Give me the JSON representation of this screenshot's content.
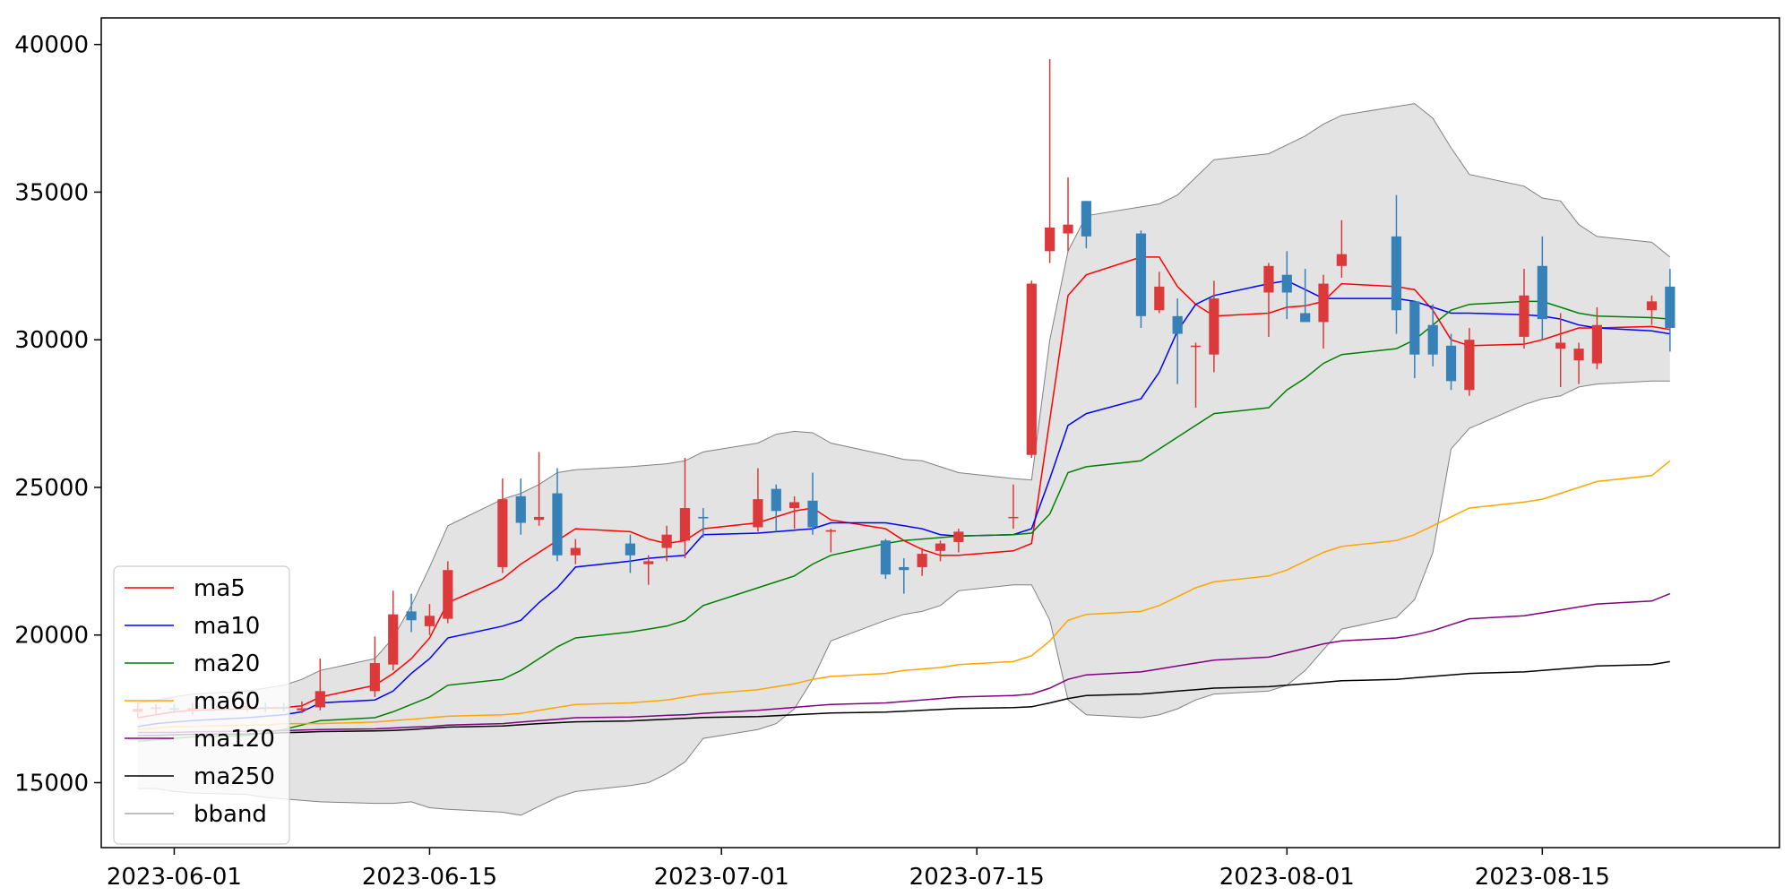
{
  "chart_data": {
    "type": "candlestick",
    "title": "",
    "xlabel": "",
    "ylabel": "",
    "ylim": [
      12800,
      40900
    ],
    "xlim": [
      "2023-05-28",
      "2023-08-28"
    ],
    "yticks": [
      15000,
      20000,
      25000,
      30000,
      35000,
      40000
    ],
    "xticks": [
      "2023-06-01",
      "2023-06-15",
      "2023-07-01",
      "2023-07-15",
      "2023-08-01",
      "2023-08-15"
    ],
    "grid": false,
    "legend_position": "lower-left",
    "colors": {
      "up": "#dc3a3a",
      "down": "#3581b8"
    },
    "dates": [
      "2023-05-30",
      "2023-05-31",
      "2023-06-01",
      "2023-06-02",
      "2023-06-05",
      "2023-06-06",
      "2023-06-07",
      "2023-06-08",
      "2023-06-09",
      "2023-06-12",
      "2023-06-13",
      "2023-06-14",
      "2023-06-15",
      "2023-06-16",
      "2023-06-19",
      "2023-06-20",
      "2023-06-21",
      "2023-06-22",
      "2023-06-23",
      "2023-06-26",
      "2023-06-27",
      "2023-06-28",
      "2023-06-29",
      "2023-06-30",
      "2023-07-03",
      "2023-07-04",
      "2023-07-05",
      "2023-07-06",
      "2023-07-07",
      "2023-07-10",
      "2023-07-11",
      "2023-07-12",
      "2023-07-13",
      "2023-07-14",
      "2023-07-17",
      "2023-07-18",
      "2023-07-19",
      "2023-07-20",
      "2023-07-21",
      "2023-07-24",
      "2023-07-25",
      "2023-07-26",
      "2023-07-27",
      "2023-07-28",
      "2023-07-31",
      "2023-08-01",
      "2023-08-02",
      "2023-08-03",
      "2023-08-04",
      "2023-08-07",
      "2023-08-08",
      "2023-08-09",
      "2023-08-10",
      "2023-08-11",
      "2023-08-14",
      "2023-08-15",
      "2023-08-16",
      "2023-08-17",
      "2023-08-18",
      "2023-08-21",
      "2023-08-22"
    ],
    "ohlc": [
      [
        17400,
        17700,
        17200,
        17500
      ],
      [
        17500,
        17650,
        17300,
        17550
      ],
      [
        17520,
        17650,
        17350,
        17500
      ],
      [
        17480,
        17700,
        17300,
        17520
      ],
      [
        17550,
        17700,
        17400,
        17600
      ],
      [
        17560,
        17700,
        17400,
        17550
      ],
      [
        17550,
        17700,
        17400,
        17500
      ],
      [
        17450,
        17750,
        17350,
        17520
      ],
      [
        17550,
        19200,
        17450,
        18100
      ],
      [
        18100,
        19950,
        17900,
        19050
      ],
      [
        19000,
        21500,
        18800,
        20700
      ],
      [
        20800,
        21400,
        20100,
        20500
      ],
      [
        20300,
        21050,
        20000,
        20650
      ],
      [
        20550,
        22500,
        20400,
        22200
      ],
      [
        22300,
        25300,
        22100,
        24600
      ],
      [
        24700,
        25300,
        23400,
        23800
      ],
      [
        23900,
        26200,
        23700,
        24000
      ],
      [
        24800,
        25650,
        22500,
        22700
      ],
      [
        22700,
        23250,
        22400,
        22950
      ],
      [
        23100,
        23400,
        22100,
        22700
      ],
      [
        22400,
        22700,
        21700,
        22500
      ],
      [
        22950,
        23700,
        22500,
        23400
      ],
      [
        23200,
        26000,
        22600,
        24300
      ],
      [
        24000,
        24300,
        23300,
        23950
      ],
      [
        23650,
        25650,
        23500,
        24600
      ],
      [
        24950,
        25100,
        23500,
        24200
      ],
      [
        24300,
        24700,
        23600,
        24500
      ],
      [
        24550,
        25500,
        23400,
        23650
      ],
      [
        23500,
        23600,
        22800,
        23550
      ],
      [
        23200,
        23250,
        21900,
        22050
      ],
      [
        22300,
        22600,
        21400,
        22200
      ],
      [
        22300,
        22950,
        22000,
        22750
      ],
      [
        22850,
        23200,
        22500,
        23100
      ],
      [
        23150,
        23600,
        22800,
        23500
      ],
      [
        24000,
        25100,
        23600,
        24000
      ],
      [
        26100,
        32000,
        26000,
        31900
      ],
      [
        33000,
        39500,
        32600,
        33800
      ],
      [
        33600,
        35500,
        33000,
        33900
      ],
      [
        34700,
        34700,
        33100,
        33500
      ],
      [
        33600,
        33700,
        30400,
        30800
      ],
      [
        31000,
        32300,
        30900,
        31800
      ],
      [
        30800,
        31400,
        28500,
        30200
      ],
      [
        29800,
        29900,
        27700,
        29800
      ],
      [
        29500,
        32000,
        28900,
        31400
      ],
      [
        31600,
        32600,
        30100,
        32500
      ],
      [
        32200,
        33000,
        30700,
        31600
      ],
      [
        30900,
        32400,
        30600,
        30600
      ],
      [
        30600,
        32200,
        29700,
        31900
      ],
      [
        32500,
        34050,
        32100,
        32900
      ],
      [
        33500,
        34900,
        30200,
        31000
      ],
      [
        31300,
        31300,
        28700,
        29500
      ],
      [
        30500,
        31200,
        29100,
        29500
      ],
      [
        29800,
        30200,
        28300,
        28600
      ],
      [
        28300,
        30400,
        28100,
        30000
      ],
      [
        30100,
        32400,
        29700,
        31500
      ],
      [
        32500,
        33500,
        30000,
        30700
      ],
      [
        29700,
        30900,
        28400,
        29900
      ],
      [
        29300,
        29900,
        28500,
        29700
      ],
      [
        29200,
        31100,
        29000,
        30500
      ],
      [
        31000,
        31500,
        30500,
        31300
      ],
      [
        31800,
        32400,
        29600,
        30400
      ]
    ],
    "series": [
      {
        "name": "ma5",
        "color": "#ff0000",
        "width": 1.5,
        "values": [
          17200,
          17300,
          17400,
          17450,
          17500,
          17520,
          17540,
          17600,
          17900,
          18300,
          18700,
          19200,
          19900,
          21100,
          21900,
          22400,
          22800,
          23200,
          23600,
          23500,
          23250,
          23100,
          23200,
          23600,
          23800,
          24000,
          24200,
          24300,
          23900,
          23600,
          23200,
          22900,
          22700,
          22700,
          22850,
          23100,
          27300,
          31500,
          32200,
          32800,
          32800,
          31800,
          31200,
          30800,
          30900,
          31100,
          31150,
          31300,
          31900,
          31800,
          31700,
          31000,
          30000,
          29800,
          29850,
          30000,
          30200,
          30400,
          30400,
          30450,
          30350
        ]
      },
      {
        "name": "ma10",
        "color": "#0000ff",
        "width": 1.5,
        "values": [
          16900,
          17000,
          17050,
          17100,
          17200,
          17250,
          17300,
          17400,
          17700,
          17800,
          18100,
          18700,
          19200,
          19900,
          20300,
          20500,
          21100,
          21600,
          22300,
          22500,
          22600,
          22650,
          22700,
          23400,
          23450,
          23500,
          23550,
          23600,
          23800,
          23800,
          23700,
          23600,
          23400,
          23350,
          23400,
          23600,
          25300,
          27100,
          27500,
          28000,
          28900,
          30300,
          31200,
          31500,
          31900,
          32000,
          31700,
          31400,
          31400,
          31400,
          31300,
          31100,
          30900,
          30900,
          30850,
          30800,
          30700,
          30500,
          30400,
          30300,
          30200
        ]
      },
      {
        "name": "ma20",
        "color": "#008000",
        "width": 1.5,
        "values": [
          16400,
          16450,
          16500,
          16550,
          16600,
          16700,
          16800,
          16950,
          17100,
          17200,
          17400,
          17650,
          17900,
          18300,
          18500,
          18800,
          19200,
          19600,
          19900,
          20100,
          20200,
          20300,
          20500,
          21000,
          21600,
          21800,
          22000,
          22400,
          22700,
          23100,
          23200,
          23250,
          23300,
          23350,
          23400,
          23450,
          24100,
          25500,
          25700,
          25900,
          26300,
          26700,
          27100,
          27500,
          27700,
          28300,
          28700,
          29200,
          29500,
          29700,
          30000,
          30500,
          31000,
          31200,
          31300,
          31300,
          31100,
          30900,
          30800,
          30750,
          30700
        ]
      },
      {
        "name": "ma60",
        "color": "#ffa500",
        "width": 1.5,
        "values": [
          16800,
          16850,
          16900,
          16900,
          16950,
          16950,
          17000,
          17000,
          17000,
          17050,
          17100,
          17150,
          17200,
          17250,
          17300,
          17350,
          17450,
          17550,
          17650,
          17700,
          17750,
          17800,
          17900,
          18000,
          18150,
          18250,
          18350,
          18500,
          18600,
          18700,
          18800,
          18850,
          18900,
          19000,
          19100,
          19300,
          19800,
          20500,
          20700,
          20800,
          21000,
          21300,
          21600,
          21800,
          22000,
          22200,
          22500,
          22800,
          23000,
          23200,
          23400,
          23700,
          24000,
          24300,
          24500,
          24600,
          24800,
          25000,
          25200,
          25400,
          25900
        ]
      },
      {
        "name": "ma120",
        "color": "#800080",
        "width": 1.5,
        "values": [
          16700,
          16700,
          16700,
          16720,
          16740,
          16750,
          16760,
          16780,
          16800,
          16820,
          16850,
          16880,
          16900,
          16950,
          17000,
          17050,
          17100,
          17150,
          17200,
          17220,
          17250,
          17280,
          17300,
          17350,
          17450,
          17500,
          17550,
          17600,
          17650,
          17700,
          17750,
          17800,
          17850,
          17900,
          17950,
          18000,
          18200,
          18500,
          18650,
          18750,
          18850,
          18950,
          19050,
          19150,
          19250,
          19400,
          19550,
          19700,
          19800,
          19900,
          20000,
          20150,
          20350,
          20550,
          20650,
          20750,
          20850,
          20950,
          21050,
          21150,
          21400
        ]
      },
      {
        "name": "ma250",
        "color": "#000000",
        "width": 1.5,
        "values": [
          16600,
          16600,
          16620,
          16640,
          16650,
          16670,
          16690,
          16710,
          16730,
          16750,
          16770,
          16800,
          16840,
          16880,
          16920,
          16960,
          17000,
          17030,
          17060,
          17090,
          17120,
          17150,
          17180,
          17210,
          17240,
          17270,
          17300,
          17330,
          17360,
          17390,
          17420,
          17450,
          17480,
          17510,
          17540,
          17570,
          17700,
          17850,
          17950,
          18000,
          18050,
          18100,
          18150,
          18200,
          18250,
          18300,
          18350,
          18400,
          18450,
          18500,
          18550,
          18600,
          18650,
          18700,
          18750,
          18800,
          18850,
          18900,
          18950,
          19000,
          19100
        ]
      }
    ],
    "bband": {
      "name": "bband",
      "color": "#808080",
      "fill": "#e3e3e3",
      "upper": [
        17700,
        17800,
        17900,
        18000,
        18100,
        18200,
        18300,
        18500,
        18800,
        19200,
        19900,
        21000,
        22300,
        23700,
        24600,
        24800,
        25100,
        25500,
        25600,
        25700,
        25750,
        25800,
        25900,
        26200,
        26500,
        26800,
        26900,
        26850,
        26500,
        26100,
        25950,
        25900,
        25700,
        25500,
        25300,
        25250,
        30000,
        33000,
        34200,
        34500,
        34600,
        34900,
        35500,
        36100,
        36300,
        36600,
        36900,
        37300,
        37600,
        37900,
        38000,
        37500,
        36500,
        35600,
        35200,
        34800,
        34700,
        33900,
        33500,
        33300,
        32800
      ],
      "lower": [
        14800,
        14800,
        14700,
        14650,
        14600,
        14500,
        14450,
        14400,
        14350,
        14300,
        14300,
        14350,
        14150,
        14100,
        14000,
        13900,
        14200,
        14500,
        14700,
        14900,
        15000,
        15300,
        15700,
        16500,
        16800,
        17000,
        17500,
        18500,
        19800,
        20500,
        20700,
        20800,
        21000,
        21500,
        21700,
        21700,
        20500,
        17800,
        17300,
        17200,
        17300,
        17500,
        17800,
        18000,
        18100,
        18300,
        18800,
        19500,
        20200,
        20600,
        21200,
        22800,
        26300,
        27000,
        27800,
        28000,
        28100,
        28400,
        28500,
        28600,
        28600
      ]
    },
    "legend": [
      "ma5",
      "ma10",
      "ma20",
      "ma60",
      "ma120",
      "ma250",
      "bband"
    ]
  }
}
